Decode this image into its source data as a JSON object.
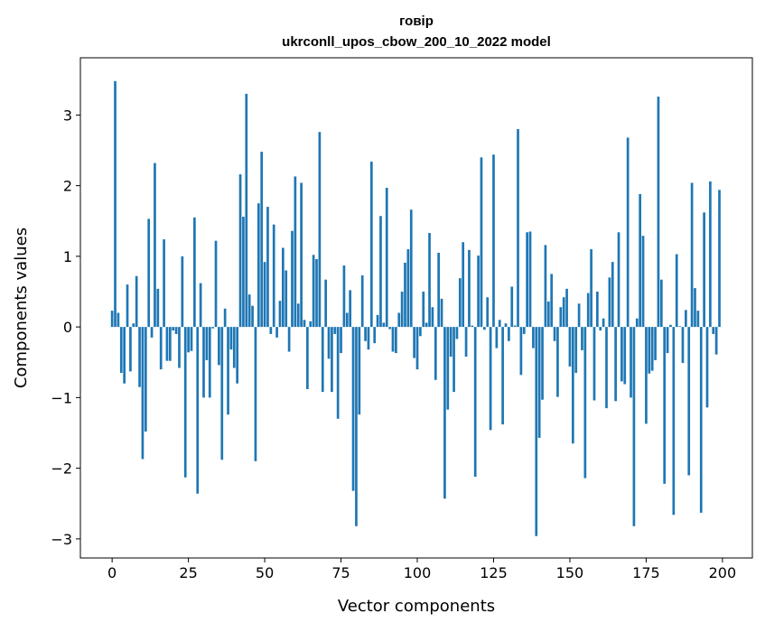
{
  "chart_data": {
    "type": "bar",
    "title_line1": "говір",
    "title_line2": "ukrconll_upos_cbow_200_10_2022 model",
    "xlabel": "Vector components",
    "ylabel": "Components values",
    "xlim": [
      -10.4,
      209.8
    ],
    "ylim": [
      -3.27,
      3.81
    ],
    "xticks": [
      0,
      25,
      50,
      75,
      100,
      125,
      150,
      175,
      200
    ],
    "yticks": [
      -3,
      -2,
      -1,
      0,
      1,
      2,
      3
    ],
    "ytick_labels": [
      "−3",
      "−2",
      "−1",
      "0",
      "1",
      "2",
      "3"
    ],
    "grid": false,
    "color": "#1f77b4",
    "values": [
      0.23,
      3.48,
      0.2,
      -0.65,
      -0.8,
      0.6,
      -0.63,
      0.05,
      0.72,
      -0.85,
      -1.87,
      -1.48,
      1.53,
      -0.15,
      2.32,
      0.54,
      -0.6,
      1.24,
      -0.48,
      -0.48,
      -0.05,
      -0.1,
      -0.58,
      1.0,
      -2.13,
      -0.36,
      -0.34,
      1.55,
      -2.36,
      0.62,
      -1.0,
      -0.47,
      -1.0,
      -0.02,
      1.22,
      -0.54,
      -1.88,
      0.26,
      -1.24,
      -0.32,
      -0.58,
      -0.8,
      2.16,
      1.56,
      3.3,
      0.46,
      0.3,
      -1.9,
      1.75,
      2.48,
      0.92,
      1.7,
      -0.1,
      1.45,
      -0.15,
      0.37,
      1.12,
      0.8,
      -0.35,
      1.36,
      2.13,
      0.33,
      2.04,
      0.1,
      -0.88,
      0.08,
      1.02,
      0.96,
      2.76,
      -0.92,
      0.67,
      -0.45,
      -0.92,
      -0.1,
      -1.3,
      -0.37,
      0.87,
      0.2,
      0.52,
      -2.32,
      -2.82,
      -1.24,
      0.73,
      -0.2,
      -0.32,
      2.34,
      -0.23,
      0.17,
      1.57,
      0.06,
      1.97,
      -0.03,
      -0.35,
      -0.37,
      0.2,
      0.5,
      0.91,
      1.1,
      1.66,
      -0.44,
      -0.6,
      -0.13,
      0.5,
      0.06,
      1.33,
      0.28,
      -0.75,
      1.05,
      0.4,
      -2.43,
      -1.17,
      -0.42,
      -0.92,
      -0.17,
      0.69,
      1.2,
      -0.42,
      1.09,
      0.02,
      -2.12,
      1.01,
      2.4,
      -0.04,
      0.42,
      -1.46,
      2.44,
      -0.3,
      0.1,
      -1.38,
      0.05,
      -0.2,
      0.57,
      0.02,
      2.8,
      -0.68,
      -0.1,
      1.34,
      1.35,
      -0.3,
      -2.96,
      -1.57,
      -1.03,
      1.16,
      0.36,
      0.75,
      -0.2,
      -0.99,
      0.28,
      0.42,
      0.54,
      -0.56,
      -1.65,
      -0.65,
      0.33,
      -0.33,
      -2.14,
      0.48,
      1.1,
      -1.04,
      0.5,
      -0.05,
      0.12,
      -1.15,
      0.7,
      0.92,
      -1.05,
      1.34,
      -0.77,
      -0.81,
      2.68,
      -1.0,
      -2.82,
      0.12,
      1.88,
      1.29,
      -1.37,
      -0.66,
      -0.62,
      -0.47,
      3.26,
      0.67,
      -2.22,
      -0.37,
      0.03,
      -2.66,
      1.03,
      0.01,
      -0.51,
      0.24,
      -2.1,
      2.04,
      0.55,
      0.23,
      -2.63,
      1.62,
      -1.14,
      2.06,
      -0.1,
      -0.39,
      1.94
    ]
  }
}
